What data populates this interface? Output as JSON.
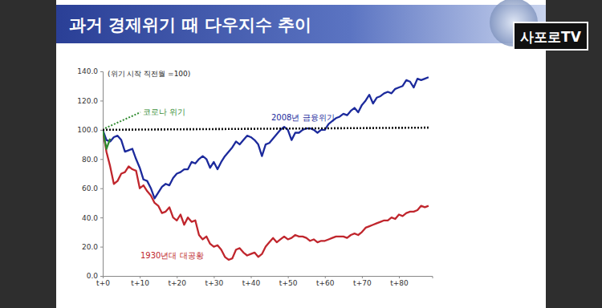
{
  "chart_data": {
    "type": "line",
    "title": "과거 경제위기 때 다우지수 추이",
    "y_label": "(위기 시작 직전월 =100)",
    "watermark": "사포로TV",
    "x": [
      0,
      1,
      2,
      3,
      4,
      5,
      6,
      7,
      8,
      9,
      10,
      11,
      12,
      13,
      14,
      15,
      16,
      17,
      18,
      19,
      20,
      21,
      22,
      23,
      24,
      25,
      26,
      27,
      28,
      29,
      30,
      31,
      32,
      33,
      34,
      35,
      36,
      37,
      38,
      39,
      40,
      41,
      42,
      43,
      44,
      45,
      46,
      47,
      48,
      49,
      50,
      51,
      52,
      53,
      54,
      55,
      56,
      57,
      58,
      59,
      60,
      61,
      62,
      63,
      64,
      65,
      66,
      67,
      68,
      69,
      70,
      71,
      72,
      73,
      74,
      75,
      76,
      77,
      78,
      79,
      80,
      81,
      82,
      83,
      84,
      85,
      86,
      87,
      88
    ],
    "xlim": [
      0,
      89
    ],
    "xticks": [
      {
        "value": 0,
        "label": "t+0"
      },
      {
        "value": 10,
        "label": "t+10"
      },
      {
        "value": 20,
        "label": "t+20"
      },
      {
        "value": 30,
        "label": "t+30"
      },
      {
        "value": 40,
        "label": "t+40"
      },
      {
        "value": 50,
        "label": "t+50"
      },
      {
        "value": 60,
        "label": "t+60"
      },
      {
        "value": 70,
        "label": "t+70"
      },
      {
        "value": 80,
        "label": "t+80"
      }
    ],
    "ylim": [
      0,
      140
    ],
    "yticks": [
      {
        "value": 0,
        "label": "0.0"
      },
      {
        "value": 20,
        "label": "20.0"
      },
      {
        "value": 40,
        "label": "40.0"
      },
      {
        "value": 60,
        "label": "60.0"
      },
      {
        "value": 80,
        "label": "80.0"
      },
      {
        "value": 100,
        "label": "100.0"
      },
      {
        "value": 120,
        "label": "120.0"
      },
      {
        "value": 140,
        "label": "140.0"
      }
    ],
    "grid": false,
    "series": [
      {
        "name": "1930년대 대공황",
        "color": "#c0262d",
        "line_style": "solid",
        "values": [
          100,
          85,
          75,
          63,
          65,
          70,
          71,
          75,
          73,
          72,
          60,
          62,
          58,
          55,
          50,
          48,
          43,
          44,
          47,
          40,
          38,
          42,
          35,
          40,
          37,
          38,
          28,
          25,
          27,
          22,
          20,
          21,
          18,
          13,
          11,
          12,
          18,
          19,
          16,
          14,
          15,
          16,
          13,
          15,
          20,
          23,
          26,
          23,
          25,
          27,
          25,
          26,
          28,
          27,
          27,
          26,
          24,
          25,
          23,
          24,
          24,
          25,
          26,
          27,
          27,
          27,
          26,
          28,
          29,
          28,
          30,
          33,
          34,
          35,
          36,
          37,
          38,
          38,
          40,
          39,
          42,
          41,
          43,
          44,
          44,
          45,
          48,
          47,
          48
        ]
      },
      {
        "name": "2008년 금융위기",
        "color": "#1c2a9c",
        "line_style": "solid",
        "values": [
          100,
          93,
          92,
          95,
          96,
          93,
          85,
          86,
          87,
          80,
          74,
          66,
          65,
          60,
          53,
          57,
          61,
          63,
          62,
          67,
          70,
          71,
          73,
          73,
          78,
          77,
          80,
          82,
          80,
          74,
          78,
          73,
          78,
          82,
          85,
          88,
          92,
          90,
          93,
          96,
          95,
          93,
          90,
          82,
          90,
          91,
          94,
          97,
          100,
          102,
          100,
          93,
          98,
          98,
          100,
          101,
          101,
          100,
          98,
          100,
          100,
          104,
          106,
          108,
          109,
          111,
          110,
          113,
          115,
          112,
          117,
          120,
          124,
          118,
          122,
          123,
          125,
          126,
          125,
          128,
          129,
          130,
          134,
          133,
          129,
          135,
          134,
          135,
          136
        ]
      },
      {
        "name": "코로나 위기",
        "color": "#2f8a2f",
        "line_style": "solid",
        "x": [
          0,
          1,
          2
        ],
        "values": [
          100,
          87,
          94
        ]
      },
      {
        "color": "#111111",
        "line_style": "dotted",
        "x": [
          0,
          88
        ],
        "values": [
          100,
          101.5
        ]
      }
    ]
  }
}
